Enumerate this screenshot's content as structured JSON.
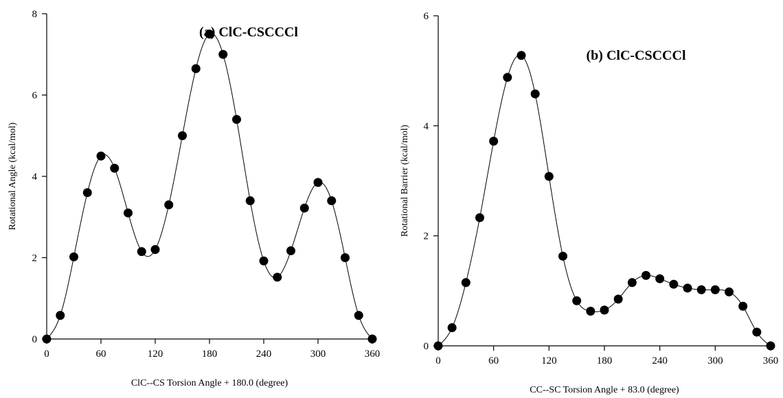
{
  "chart_data": [
    {
      "type": "scatter",
      "title": "(a) ClC-CSCCCl",
      "xlabel": "ClC--CS Torsion Angle + 180.0 (degree)",
      "ylabel": "Rotational Angle (kcal/mol)",
      "xlim": [
        0,
        360
      ],
      "ylim": [
        0,
        8
      ],
      "xticks": [
        0,
        60,
        120,
        180,
        240,
        300,
        360
      ],
      "yticks": [
        0,
        2,
        4,
        6,
        8
      ],
      "grid": false,
      "series": [
        {
          "x": [
            0,
            15,
            30,
            45,
            60,
            75,
            90,
            105,
            120,
            135,
            150,
            165,
            180,
            195,
            210,
            225,
            240,
            255,
            270,
            285,
            300,
            315,
            330,
            345,
            360
          ],
          "y": [
            0.0,
            0.58,
            2.02,
            3.6,
            4.5,
            4.2,
            3.1,
            2.15,
            2.2,
            3.3,
            5.0,
            6.65,
            7.5,
            7.0,
            5.4,
            3.4,
            1.92,
            1.52,
            2.17,
            3.22,
            3.85,
            3.4,
            2.0,
            0.58,
            0.0
          ]
        }
      ]
    },
    {
      "type": "scatter",
      "title": "(b) ClC-CSCCCl",
      "xlabel": "CC--SC Torsion Angle + 83.0 (degree)",
      "ylabel": "Rotational Barrier (kcal/mol)",
      "xlim": [
        0,
        360
      ],
      "ylim": [
        0,
        6
      ],
      "xticks": [
        0,
        60,
        120,
        180,
        240,
        300,
        360
      ],
      "yticks": [
        0,
        2,
        4,
        6
      ],
      "grid": false,
      "series": [
        {
          "x": [
            0,
            15,
            30,
            45,
            60,
            75,
            90,
            105,
            120,
            135,
            150,
            165,
            180,
            195,
            210,
            225,
            240,
            255,
            270,
            285,
            300,
            315,
            330,
            345,
            360
          ],
          "y": [
            0.0,
            0.33,
            1.15,
            2.33,
            3.72,
            4.88,
            5.28,
            4.58,
            3.08,
            1.63,
            0.82,
            0.63,
            0.65,
            0.85,
            1.15,
            1.28,
            1.22,
            1.12,
            1.05,
            1.02,
            1.02,
            0.98,
            0.72,
            0.25,
            0.0
          ]
        }
      ]
    }
  ]
}
